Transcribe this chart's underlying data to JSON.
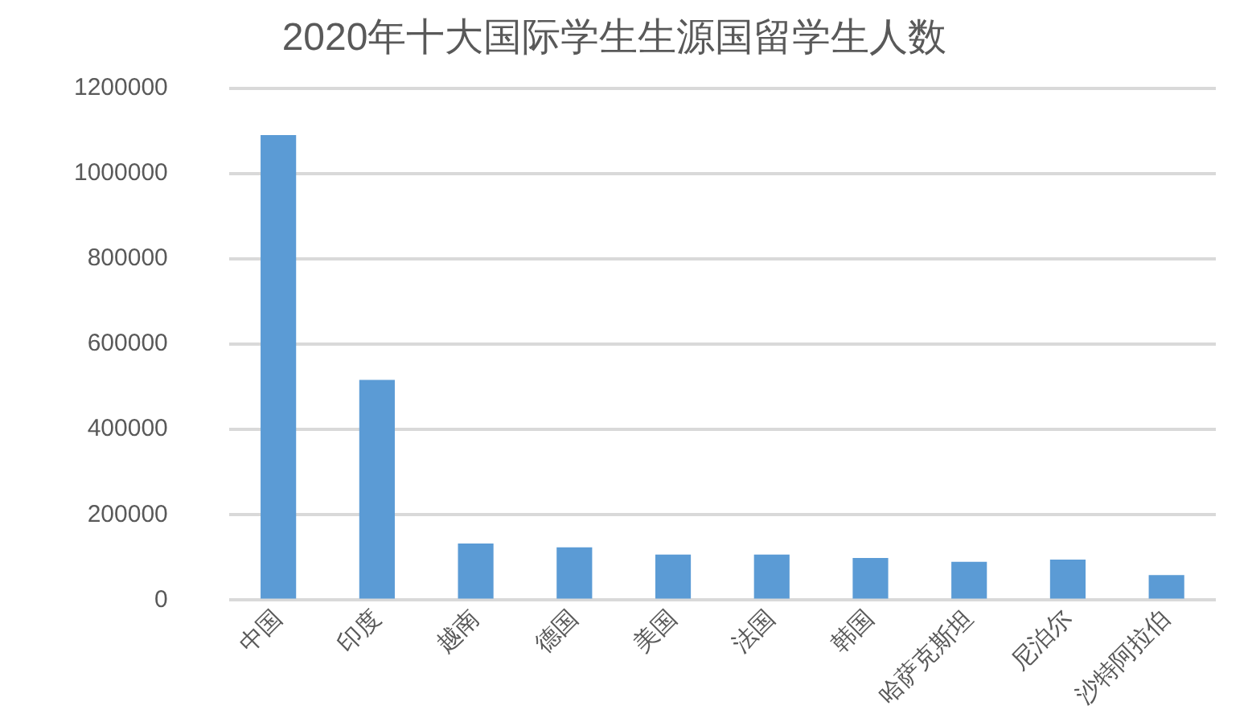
{
  "chart_data": {
    "type": "bar",
    "title": "2020年十大国际学生生源国留学生人数",
    "categories": [
      "中国",
      "印度",
      "越南",
      "德国",
      "美国",
      "法国",
      "韩国",
      "哈萨克斯坦",
      "尼泊尔",
      "沙特阿拉伯"
    ],
    "values": [
      1090000,
      516000,
      133000,
      124000,
      107000,
      107000,
      99000,
      90000,
      95000,
      59000
    ],
    "color": "#5b9bd5",
    "ylim": [
      0,
      1200000
    ],
    "yticks": [
      0,
      200000,
      400000,
      600000,
      800000,
      1000000,
      1200000
    ],
    "grid": "y",
    "legend": false
  }
}
